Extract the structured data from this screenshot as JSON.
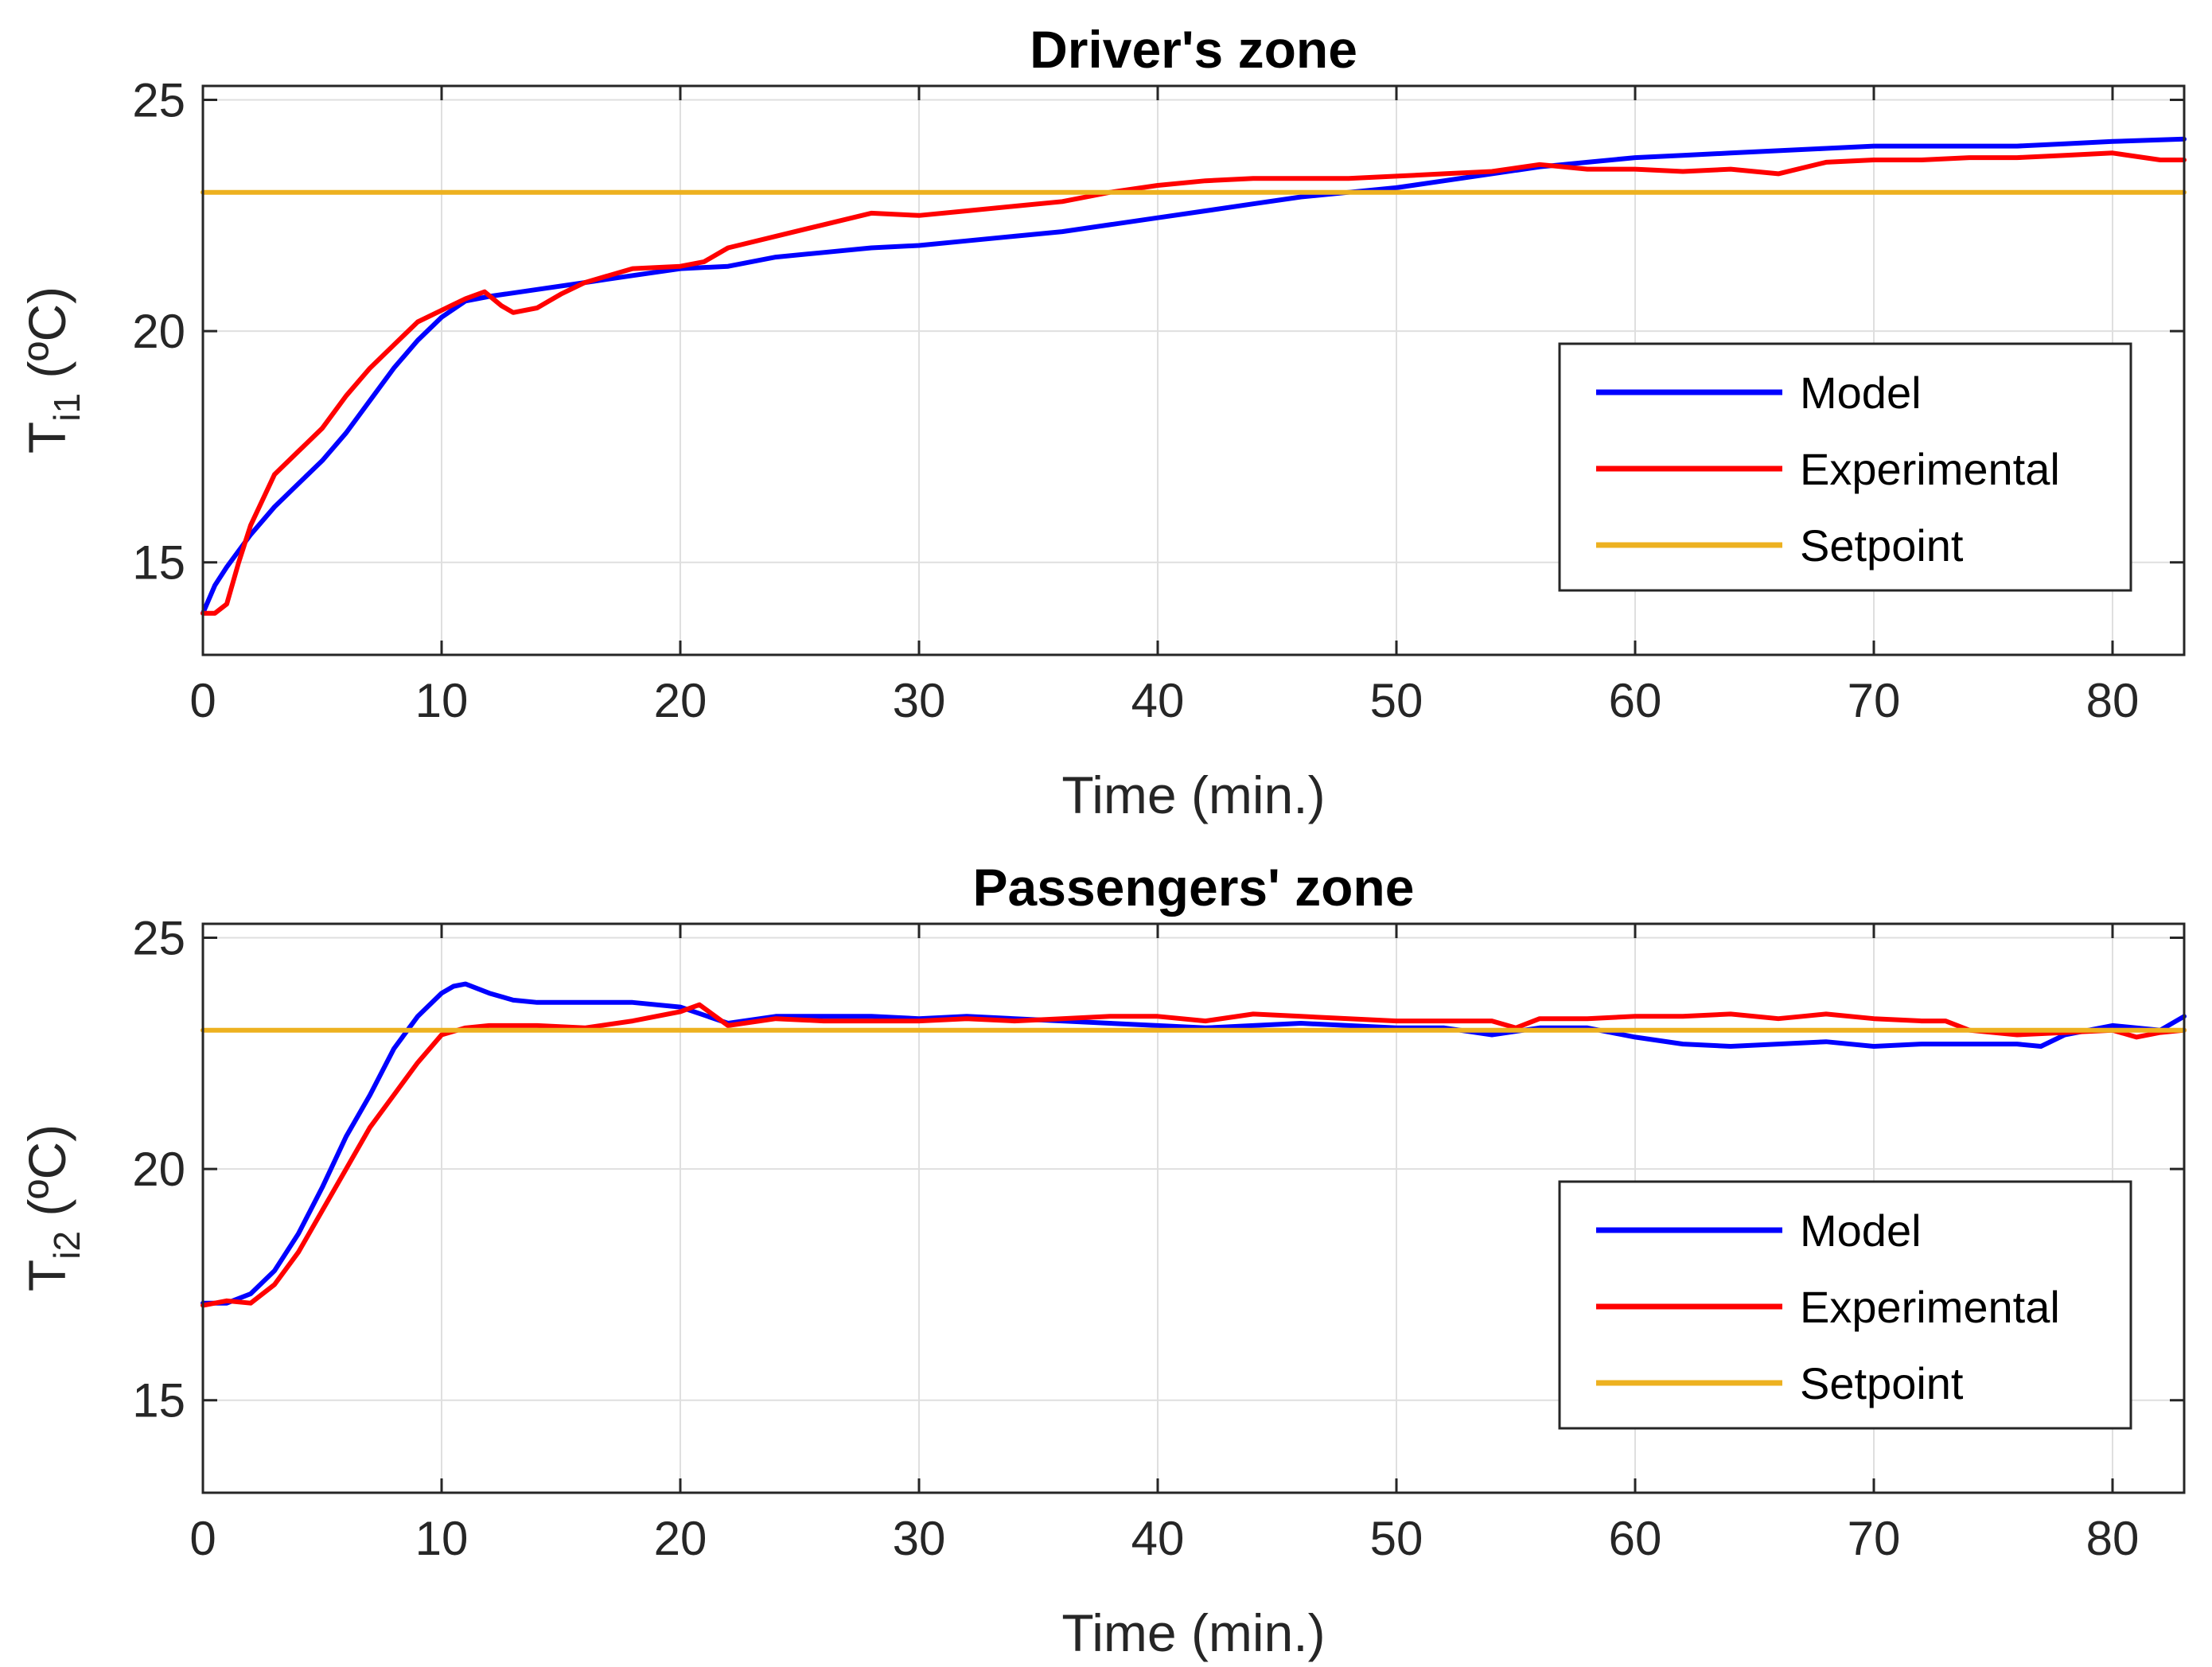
{
  "colors": {
    "model": "#0000ff",
    "experimental": "#ff0000",
    "setpoint": "#edb120"
  },
  "chart_data": [
    {
      "type": "line",
      "title": "Driver's zone",
      "xlabel": "Time (min.)",
      "ylabel_main": "T",
      "ylabel_sub": "i1",
      "ylabel_unit": " (ºC)",
      "xlim": [
        0,
        83
      ],
      "ylim": [
        13,
        25.3
      ],
      "xticks": [
        "0",
        "10",
        "20",
        "30",
        "40",
        "50",
        "60",
        "70",
        "80"
      ],
      "yticks": [
        "15",
        "20",
        "25"
      ],
      "legend_position": "right",
      "series": [
        {
          "name": "Model",
          "x": [
            0,
            0.5,
            1,
            2,
            3,
            4,
            5,
            6,
            7,
            8,
            9,
            10,
            11,
            12,
            14,
            16,
            18,
            20,
            22,
            24,
            26,
            28,
            30,
            32,
            34,
            36,
            38,
            40,
            42,
            44,
            46,
            48,
            50,
            52,
            54,
            56,
            58,
            60,
            62,
            64,
            66,
            68,
            70,
            72,
            74,
            76,
            78,
            80,
            83
          ],
          "values": [
            13.9,
            14.5,
            14.9,
            15.6,
            16.2,
            16.7,
            17.2,
            17.8,
            18.5,
            19.2,
            19.8,
            20.3,
            20.65,
            20.75,
            20.9,
            21.05,
            21.2,
            21.35,
            21.4,
            21.6,
            21.7,
            21.8,
            21.85,
            21.95,
            22.05,
            22.15,
            22.3,
            22.45,
            22.6,
            22.75,
            22.9,
            23.0,
            23.1,
            23.25,
            23.4,
            23.55,
            23.65,
            23.75,
            23.8,
            23.85,
            23.9,
            23.95,
            24.0,
            24.0,
            24.0,
            24.0,
            24.05,
            24.1,
            24.15
          ]
        },
        {
          "name": "Experimental",
          "x": [
            0,
            0.5,
            1,
            1.5,
            2,
            3,
            4,
            5,
            6,
            7,
            8,
            9,
            10,
            11,
            11.8,
            12.5,
            13,
            14,
            15,
            16,
            18,
            20,
            21,
            22,
            24,
            26,
            28,
            30,
            32,
            34,
            36,
            38,
            40,
            42,
            44,
            46,
            48,
            50,
            52,
            54,
            56,
            58,
            60,
            62,
            64,
            66,
            68,
            70,
            72,
            74,
            76,
            78,
            80,
            82,
            83
          ],
          "values": [
            13.9,
            13.9,
            14.1,
            15.0,
            15.8,
            16.9,
            17.4,
            17.9,
            18.6,
            19.2,
            19.7,
            20.2,
            20.45,
            20.7,
            20.85,
            20.55,
            20.4,
            20.5,
            20.8,
            21.05,
            21.35,
            21.4,
            21.5,
            21.8,
            22.05,
            22.3,
            22.55,
            22.5,
            22.6,
            22.7,
            22.8,
            23.0,
            23.15,
            23.25,
            23.3,
            23.3,
            23.3,
            23.35,
            23.4,
            23.45,
            23.6,
            23.5,
            23.5,
            23.45,
            23.5,
            23.4,
            23.65,
            23.7,
            23.7,
            23.75,
            23.75,
            23.8,
            23.85,
            23.7,
            23.7
          ]
        },
        {
          "name": "Setpoint",
          "x": [
            0,
            83
          ],
          "values": [
            23,
            23
          ]
        }
      ]
    },
    {
      "type": "line",
      "title": "Passengers' zone",
      "xlabel": "Time (min.)",
      "ylabel_main": "T",
      "ylabel_sub": "i2",
      "ylabel_unit": " (ºC)",
      "xlim": [
        0,
        83
      ],
      "ylim": [
        13,
        25.3
      ],
      "xticks": [
        "0",
        "10",
        "20",
        "30",
        "40",
        "50",
        "60",
        "70",
        "80"
      ],
      "yticks": [
        "15",
        "20",
        "25"
      ],
      "legend_position": "right",
      "series": [
        {
          "name": "Model",
          "x": [
            0,
            1,
            2,
            3,
            4,
            5,
            6,
            7,
            8,
            9,
            10,
            10.5,
            11,
            12,
            13,
            14,
            16,
            18,
            20,
            22,
            24,
            26,
            28,
            30,
            32,
            34,
            36,
            38,
            40,
            42,
            44,
            46,
            48,
            50,
            52,
            54,
            56,
            58,
            60,
            62,
            64,
            66,
            68,
            70,
            72,
            74,
            76,
            77,
            78,
            80,
            82,
            83
          ],
          "values": [
            17.1,
            17.1,
            17.3,
            17.8,
            18.6,
            19.6,
            20.7,
            21.6,
            22.6,
            23.3,
            23.8,
            23.95,
            24.0,
            23.8,
            23.65,
            23.6,
            23.6,
            23.6,
            23.5,
            23.15,
            23.3,
            23.3,
            23.3,
            23.25,
            23.3,
            23.25,
            23.2,
            23.15,
            23.1,
            23.05,
            23.1,
            23.15,
            23.1,
            23.05,
            23.05,
            22.9,
            23.05,
            23.05,
            22.85,
            22.7,
            22.65,
            22.7,
            22.75,
            22.65,
            22.7,
            22.7,
            22.7,
            22.65,
            22.9,
            23.1,
            23.0,
            23.3
          ]
        },
        {
          "name": "Experimental",
          "x": [
            0,
            1,
            2,
            3,
            4,
            5,
            6,
            7,
            8,
            9,
            10,
            11,
            12,
            14,
            16,
            18,
            20,
            20.8,
            22,
            24,
            26,
            28,
            30,
            32,
            34,
            36,
            38,
            40,
            42,
            44,
            46,
            48,
            50,
            52,
            54,
            55,
            56,
            58,
            60,
            62,
            64,
            66,
            67,
            68,
            70,
            72,
            73,
            74,
            76,
            78,
            80,
            81,
            82,
            83
          ],
          "values": [
            17.05,
            17.15,
            17.1,
            17.5,
            18.2,
            19.1,
            20.0,
            20.9,
            21.6,
            22.3,
            22.9,
            23.05,
            23.1,
            23.1,
            23.05,
            23.2,
            23.4,
            23.55,
            23.1,
            23.25,
            23.2,
            23.2,
            23.2,
            23.25,
            23.2,
            23.25,
            23.3,
            23.3,
            23.2,
            23.35,
            23.3,
            23.25,
            23.2,
            23.2,
            23.2,
            23.05,
            23.25,
            23.25,
            23.3,
            23.3,
            23.35,
            23.25,
            23.3,
            23.35,
            23.25,
            23.2,
            23.2,
            23.0,
            22.9,
            22.95,
            23.0,
            22.85,
            22.95,
            23.0
          ]
        },
        {
          "name": "Setpoint",
          "x": [
            0,
            83
          ],
          "values": [
            23,
            23
          ]
        }
      ]
    }
  ]
}
